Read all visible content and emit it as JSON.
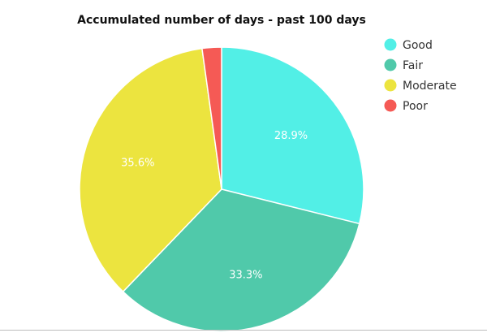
{
  "chart_data": {
    "type": "pie",
    "title": "Accumulated number of days - past 100 days",
    "legend_position": "top-right",
    "slices": [
      {
        "label": "Good",
        "value": 28.9,
        "display": "28.9%",
        "color": "#52efe6"
      },
      {
        "label": "Fair",
        "value": 33.3,
        "display": "33.3%",
        "color": "#50c9aa"
      },
      {
        "label": "Moderate",
        "value": 35.6,
        "display": "35.6%",
        "color": "#ece43f"
      },
      {
        "label": "Poor",
        "value": 2.2,
        "display": "",
        "color": "#f55a55"
      }
    ]
  }
}
